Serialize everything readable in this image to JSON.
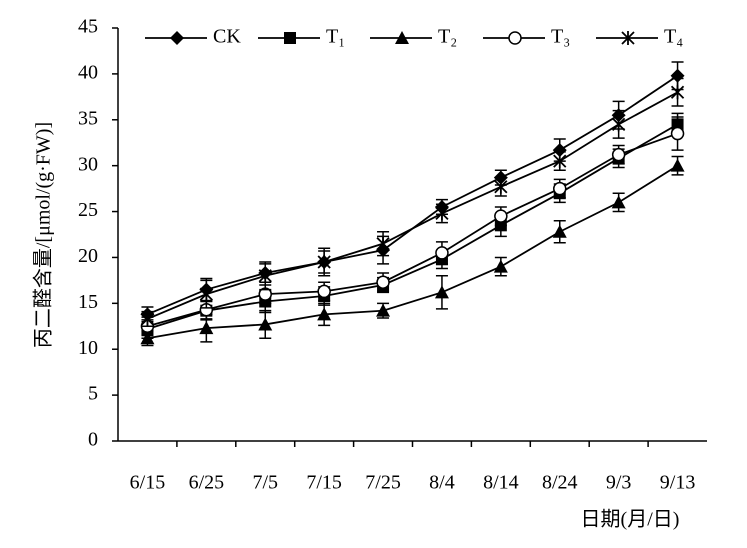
{
  "chart_data": {
    "type": "line",
    "y_label": "丙二醛含量/[μmol/(g·FW)]",
    "x_label": "日期(月/日)",
    "categories": [
      "6/15",
      "6/25",
      "7/5",
      "7/15",
      "7/25",
      "8/4",
      "8/14",
      "8/24",
      "9/3",
      "9/13"
    ],
    "ylim": [
      0,
      45
    ],
    "yticks": [
      0,
      5,
      10,
      15,
      20,
      25,
      30,
      35,
      40,
      45
    ],
    "legend": "top",
    "series": [
      {
        "name": "CK",
        "color": "#000000",
        "marker": "diamond",
        "values": [
          13.8,
          16.5,
          18.3,
          19.5,
          20.8,
          25.5,
          28.7,
          31.7,
          35.5,
          39.8
        ],
        "errors": [
          0.8,
          1.2,
          1.0,
          1.5,
          1.5,
          0.8,
          0.8,
          1.2,
          1.5,
          1.5
        ]
      },
      {
        "name": "T₁",
        "color": "#000000",
        "marker": "square",
        "values": [
          12.2,
          14.2,
          15.2,
          15.8,
          17.0,
          19.8,
          23.5,
          27.0,
          30.8,
          34.5
        ],
        "errors": [
          1.0,
          1.0,
          1.2,
          1.0,
          0.8,
          1.0,
          1.2,
          1.0,
          1.0,
          1.2
        ]
      },
      {
        "name": "T₂",
        "color": "#000000",
        "marker": "triangle",
        "values": [
          11.2,
          12.3,
          12.7,
          13.8,
          14.2,
          16.2,
          19.0,
          22.8,
          26.0,
          30.0
        ],
        "errors": [
          0.8,
          1.5,
          1.5,
          1.2,
          0.8,
          1.8,
          1.0,
          1.2,
          1.0,
          1.0
        ]
      },
      {
        "name": "T₃",
        "color": "#000000",
        "marker": "circle",
        "values": [
          12.5,
          14.3,
          16.0,
          16.3,
          17.3,
          20.5,
          24.5,
          27.5,
          31.2,
          33.5
        ],
        "errors": [
          1.0,
          1.0,
          1.0,
          1.0,
          1.0,
          1.2,
          1.0,
          1.0,
          1.0,
          1.8
        ]
      },
      {
        "name": "T₄",
        "color": "#000000",
        "marker": "star",
        "values": [
          13.3,
          16.0,
          18.0,
          19.5,
          21.5,
          24.8,
          27.7,
          30.5,
          34.5,
          38.0
        ],
        "errors": [
          0.8,
          1.5,
          1.5,
          1.2,
          1.3,
          1.0,
          1.0,
          1.0,
          1.5,
          1.5
        ]
      }
    ]
  }
}
